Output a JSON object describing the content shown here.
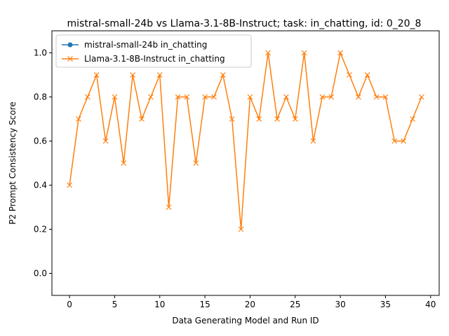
{
  "chart_data": {
    "type": "line",
    "title": "mistral-small-24b vs Llama-3.1-8B-Instruct; task: in_chatting, id: 0_20_8",
    "xlabel": "Data Generating Model and Run ID",
    "ylabel": "P2 Prompt Consistency Score",
    "xlim": [
      -1.95,
      40.95
    ],
    "ylim": [
      -0.1,
      1.1
    ],
    "xticks": [
      0,
      5,
      10,
      15,
      20,
      25,
      30,
      35,
      40
    ],
    "yticks": [
      0.0,
      0.2,
      0.4,
      0.6,
      0.8,
      1.0
    ],
    "xtick_labels": [
      "0",
      "5",
      "10",
      "15",
      "20",
      "25",
      "30",
      "35",
      "40"
    ],
    "ytick_labels": [
      "0.0",
      "0.2",
      "0.4",
      "0.6",
      "0.8",
      "1.0"
    ],
    "legend_position": "top-left",
    "grid": false,
    "series": [
      {
        "name": "mistral-small-24b in_chatting",
        "color": "#1f77b4",
        "marker": "circle",
        "x": [],
        "values": []
      },
      {
        "name": "Llama-3.1-8B-Instruct in_chatting",
        "color": "#ff7f0e",
        "marker": "x",
        "x": [
          0,
          1,
          2,
          3,
          4,
          5,
          6,
          7,
          8,
          9,
          10,
          11,
          12,
          13,
          14,
          15,
          16,
          17,
          18,
          19,
          20,
          21,
          22,
          23,
          24,
          25,
          26,
          27,
          28,
          29,
          30,
          31,
          32,
          33,
          34,
          35,
          36,
          37,
          38,
          39
        ],
        "values": [
          0.4,
          0.7,
          0.8,
          0.9,
          0.6,
          0.8,
          0.5,
          0.9,
          0.7,
          0.8,
          0.9,
          0.3,
          0.8,
          0.8,
          0.5,
          0.8,
          0.8,
          0.9,
          0.7,
          0.2,
          0.8,
          0.7,
          1.0,
          0.7,
          0.8,
          0.7,
          1.0,
          0.6,
          0.8,
          0.8,
          1.0,
          0.9,
          0.8,
          0.9,
          0.8,
          0.8,
          0.6,
          0.6,
          0.7,
          0.8
        ]
      }
    ]
  }
}
